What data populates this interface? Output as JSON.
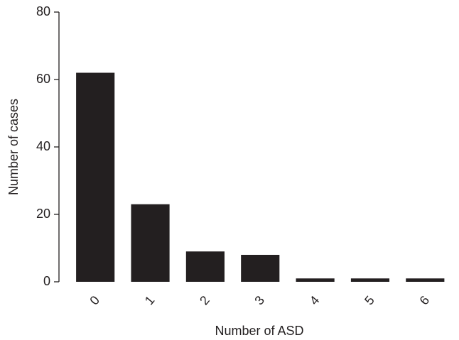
{
  "chart_data": {
    "type": "bar",
    "categories": [
      "0",
      "1",
      "2",
      "3",
      "4",
      "5",
      "6"
    ],
    "values": [
      62,
      23,
      9,
      8,
      1,
      1,
      1
    ],
    "color": "#231f20",
    "ylim": [
      0,
      80
    ],
    "yticks": [
      0,
      20,
      40,
      60,
      80
    ],
    "xlabel": "Number of ASD",
    "ylabel": "Number of cases",
    "grid": false
  }
}
